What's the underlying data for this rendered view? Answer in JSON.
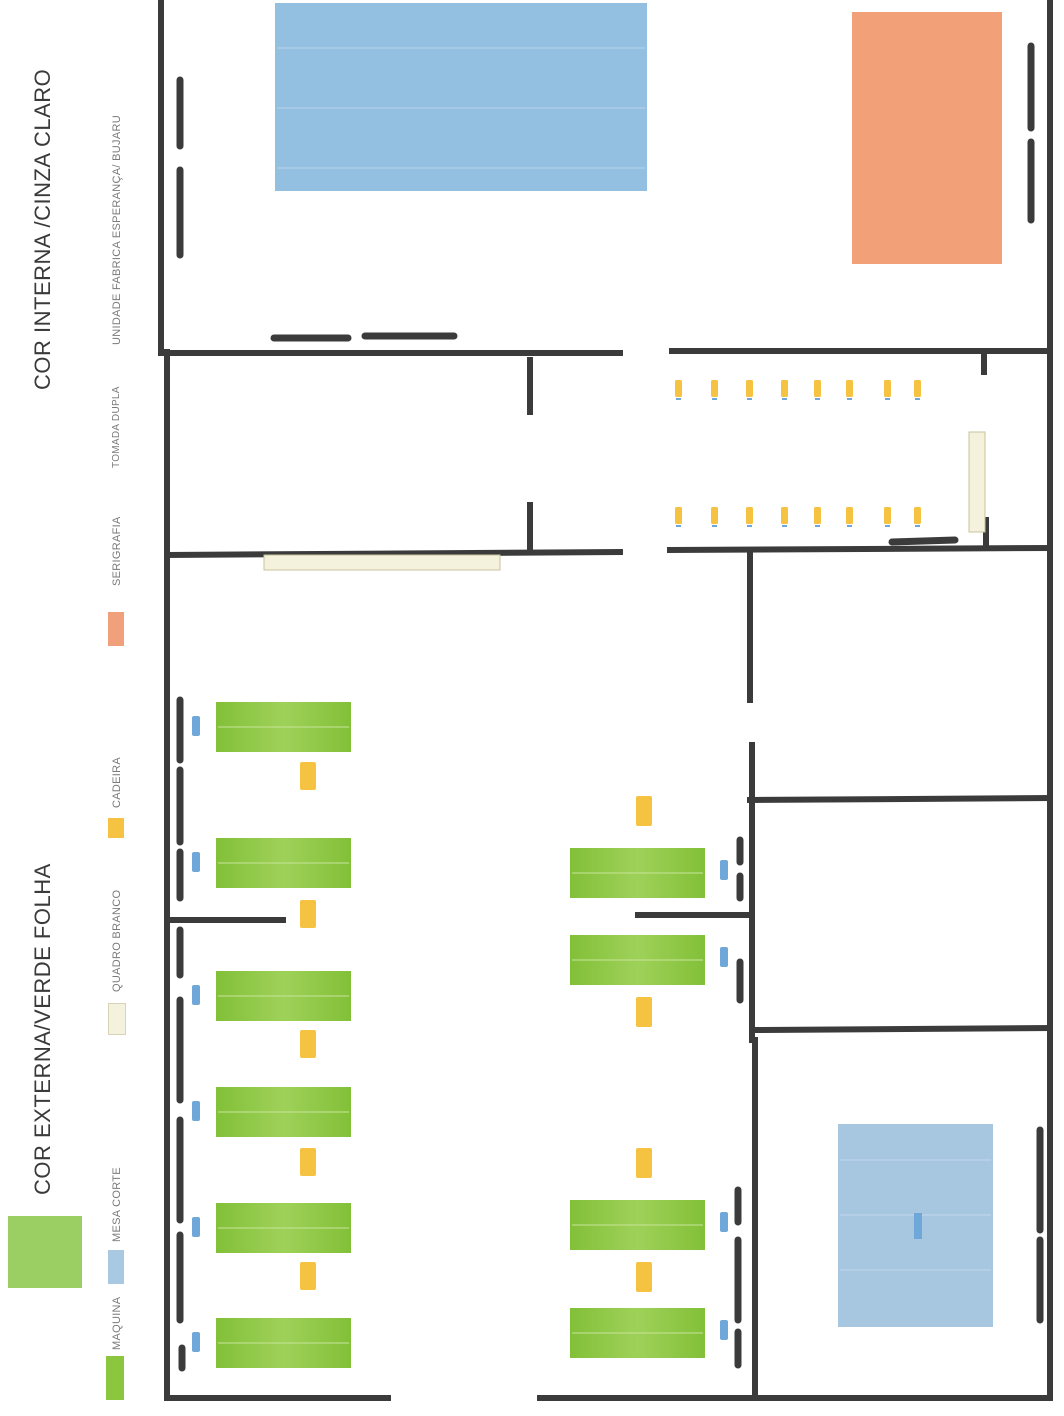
{
  "headings": {
    "interior": "COR  INTERNA /CINZA CLARO",
    "exterior": "COR  EXTERNA/VERDE FOLHA"
  },
  "legend": {
    "maquina": "MAQUINA",
    "mesa_corte": "MESA CORTE",
    "quadro_branco": "QUADRO BRANCO",
    "cadeira": "CADEIRA",
    "serigrafia": "SERIGRAFIA",
    "tomada_dupla": "TOMADA DUPLA",
    "unidade": "UNIDADE FABRICA ESPERANÇA/ BUJARU"
  },
  "colors": {
    "wall": "#3b3b3b",
    "maquina": "#8cc63f",
    "mesa_corte": "#9cc3e0",
    "mesa_corte_large": "#a6c8e0",
    "serigrafia": "#f0a07a",
    "quadro_branco": "#f4f1dc",
    "cadeira": "#f5c242",
    "tomada": "#6fa8d8",
    "exterior_swatch": "#9bcf63"
  }
}
